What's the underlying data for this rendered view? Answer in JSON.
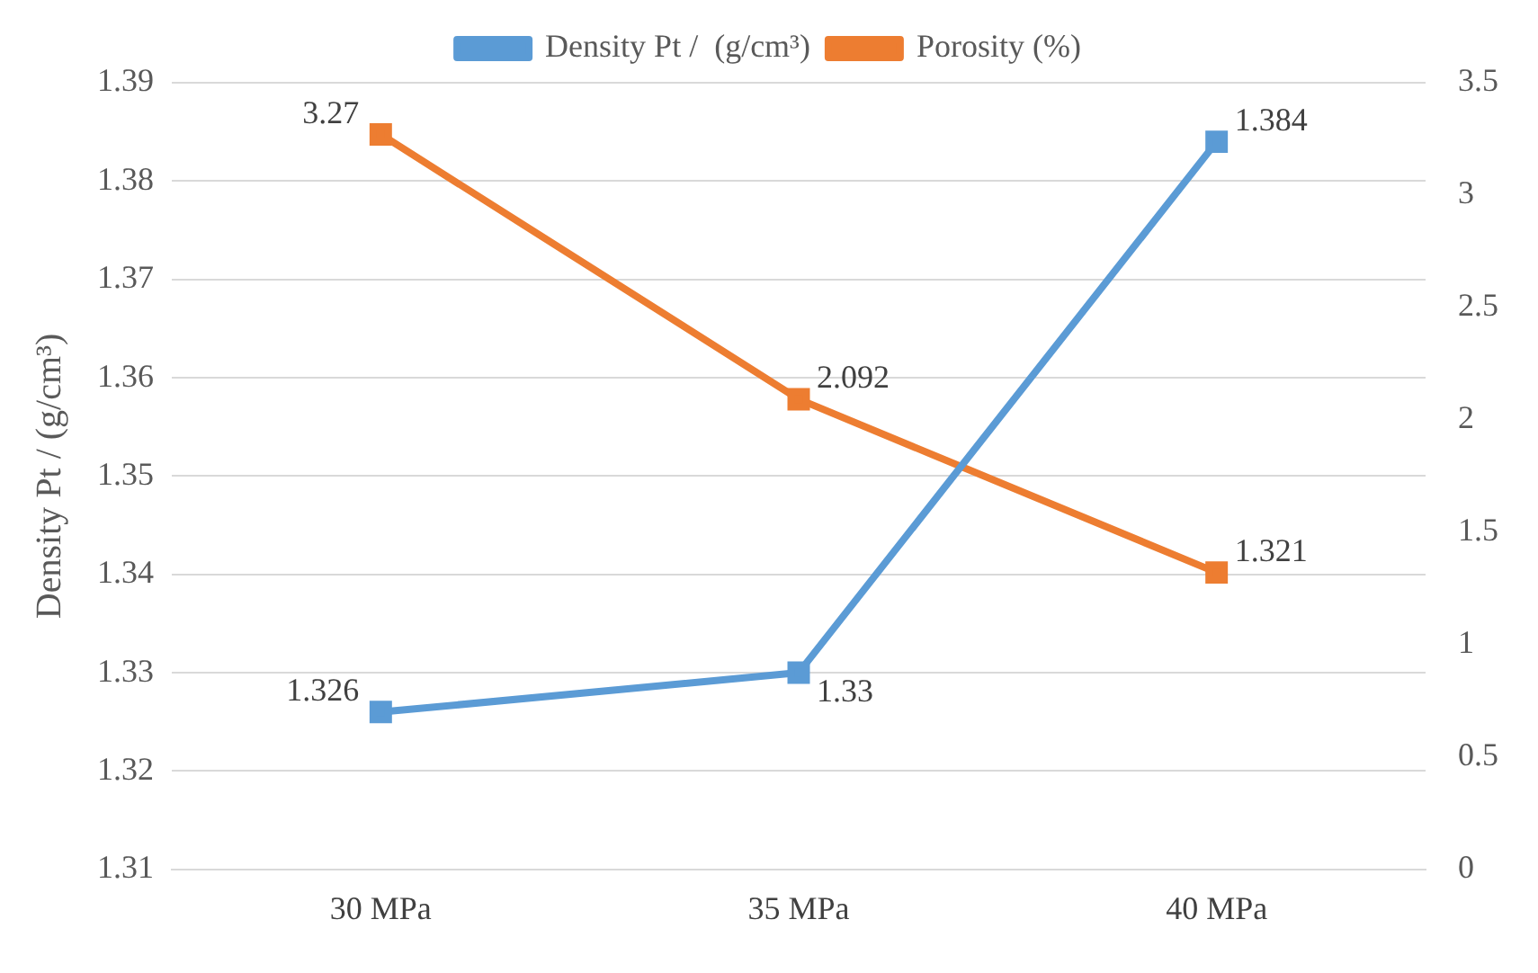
{
  "chart_data": {
    "type": "line",
    "ylabel": "Density Pt / (g/cm³)",
    "categories": [
      "30 MPa",
      "35 MPa",
      "40 MPa"
    ],
    "series": [
      {
        "name": "Density Pt /  (g/cm³)",
        "color": "#5b9bd5",
        "values": [
          1.326,
          1.33,
          1.384
        ]
      },
      {
        "name": "Porosity (%)",
        "color": "#ed7d31",
        "values": [
          3.27,
          2.092,
          1.321
        ],
        "axis": "y2"
      }
    ],
    "ylim": [
      1.31,
      1.39
    ],
    "yticks": [
      1.31,
      1.32,
      1.33,
      1.34,
      1.35,
      1.36,
      1.37,
      1.38,
      1.39
    ],
    "y2lim": [
      0,
      3.5
    ],
    "y2ticks": [
      0,
      0.5,
      1,
      1.5,
      2,
      2.5,
      3,
      3.5
    ],
    "grid": "y",
    "legend": "top",
    "marker": "square",
    "line_style": "solid",
    "data_labels": true
  }
}
